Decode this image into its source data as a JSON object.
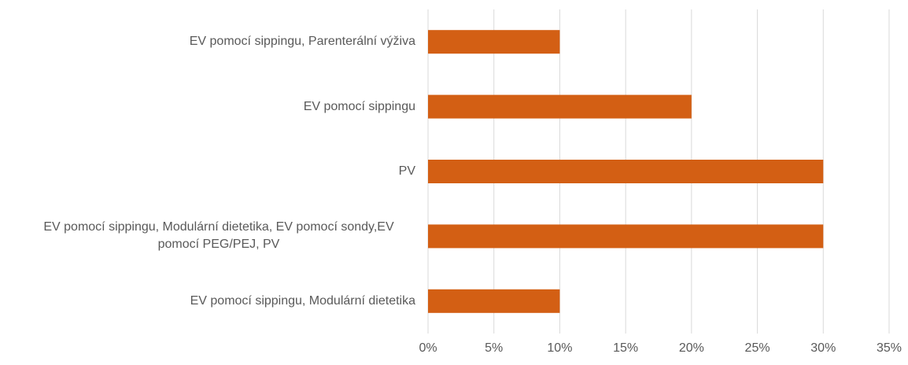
{
  "chart_data": {
    "type": "bar",
    "orientation": "horizontal",
    "categories": [
      "EV pomocí sippingu, Parenterální výživa",
      "EV pomocí sippingu",
      "PV",
      "EV pomocí sippingu, Modulární dietetika, EV pomocí sondy,EV pomocí PEG/PEJ, PV",
      "EV pomocí sippingu, Modulární dietetika"
    ],
    "values": [
      10,
      20,
      30,
      30,
      10
    ],
    "color": "#d35f14",
    "xlim": [
      0,
      35
    ],
    "xticks": [
      {
        "value": 0,
        "label": "0%"
      },
      {
        "value": 5,
        "label": "5%"
      },
      {
        "value": 10,
        "label": "10%"
      },
      {
        "value": 15,
        "label": "15%"
      },
      {
        "value": 20,
        "label": "20%"
      },
      {
        "value": 25,
        "label": "25%"
      },
      {
        "value": 30,
        "label": "30%"
      },
      {
        "value": 35,
        "label": "35%"
      }
    ],
    "grid": true
  }
}
